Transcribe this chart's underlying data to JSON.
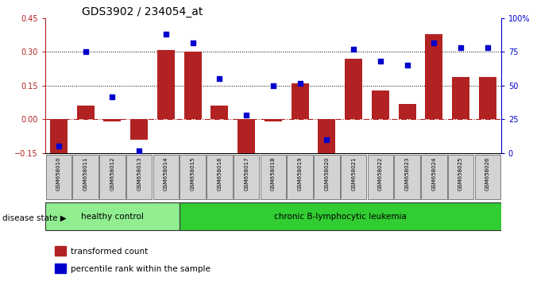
{
  "title": "GDS3902 / 234054_at",
  "samples": [
    "GSM658010",
    "GSM658011",
    "GSM658012",
    "GSM658013",
    "GSM658014",
    "GSM658015",
    "GSM658016",
    "GSM658017",
    "GSM658018",
    "GSM658019",
    "GSM658020",
    "GSM658021",
    "GSM658022",
    "GSM658023",
    "GSM658024",
    "GSM658025",
    "GSM658026"
  ],
  "bar_values": [
    -0.17,
    0.06,
    -0.01,
    -0.09,
    0.31,
    0.3,
    0.06,
    -0.17,
    -0.01,
    0.16,
    -0.17,
    0.27,
    0.13,
    0.07,
    0.38,
    0.19,
    0.19
  ],
  "percentile_values": [
    5,
    75,
    42,
    2,
    88,
    82,
    55,
    28,
    50,
    52,
    10,
    77,
    68,
    65,
    82,
    78,
    78
  ],
  "bar_color": "#b22222",
  "dot_color": "#0000cc",
  "ylim_left": [
    -0.15,
    0.45
  ],
  "ylim_right": [
    0,
    100
  ],
  "yticks_left": [
    -0.15,
    0.0,
    0.15,
    0.3,
    0.45
  ],
  "yticks_right": [
    0,
    25,
    50,
    75,
    100
  ],
  "hlines": [
    0.15,
    0.3
  ],
  "right_axis_labels": [
    "0",
    "25",
    "50",
    "75",
    "100%"
  ],
  "healthy_control_count": 5,
  "disease_state_label": "disease state",
  "group1_label": "healthy control",
  "group2_label": "chronic B-lymphocytic leukemia",
  "legend_bar_label": "transformed count",
  "legend_dot_label": "percentile rank within the sample",
  "group1_color": "#90ee90",
  "group2_color": "#32cd32",
  "background_xtick": "#d3d3d3",
  "title_fontsize": 10,
  "axis_fontsize": 7,
  "label_fontsize": 7.5
}
